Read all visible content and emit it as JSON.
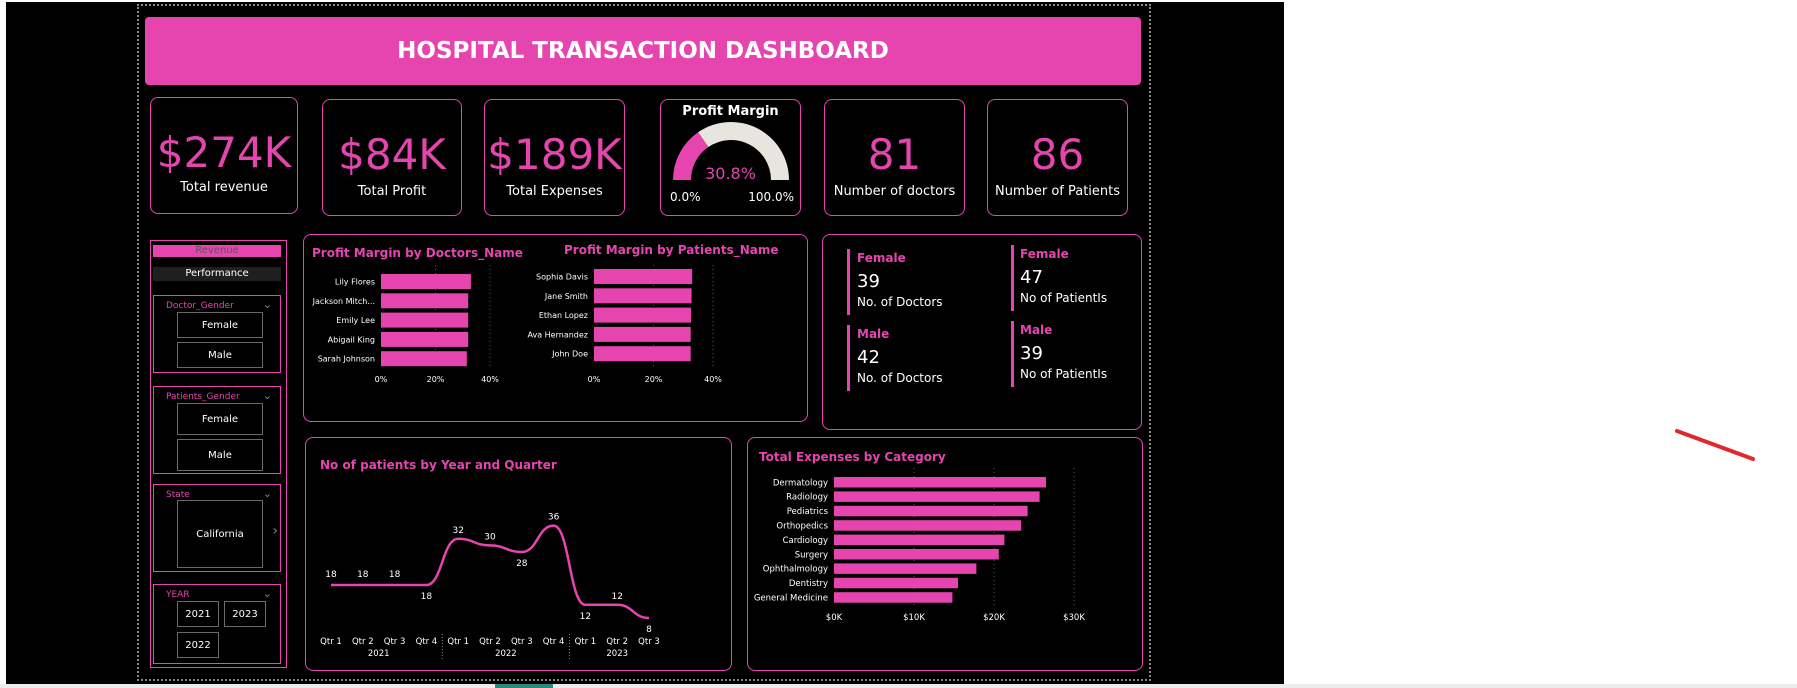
{
  "title": "HOSPITAL TRANSACTION DASHBOARD",
  "kpis": [
    {
      "value": "$274K",
      "label": "Total revenue"
    },
    {
      "value": "$84K",
      "label": "Total Profit"
    },
    {
      "value": "$189K",
      "label": "Total Expenses"
    },
    {
      "value": "81",
      "label": "Number of doctors"
    },
    {
      "value": "86",
      "label": "Number of Patients"
    }
  ],
  "gauge": {
    "title": "Profit Margin",
    "value_label": "30.8%",
    "value": 0.308,
    "min_label": "0.0%",
    "max_label": "100.0%",
    "fill_color": "#e645b0",
    "track_color": "#e8e4de"
  },
  "nav": {
    "revenue": "Revenue",
    "performance": "Performance"
  },
  "filters": {
    "doctor_gender": {
      "title": "Doctor_Gender",
      "options": [
        "Female",
        "Male"
      ]
    },
    "patient_gender": {
      "title": "Patients_Gender",
      "options": [
        "Female",
        "Male"
      ]
    },
    "state": {
      "title": "State",
      "options": [
        "California"
      ]
    },
    "year": {
      "title": "YEAR",
      "options": [
        "2021",
        "2023",
        "2022"
      ]
    }
  },
  "gender_card": {
    "doctors_female": {
      "head": "Female",
      "value": "39",
      "label": "No. of Doctors"
    },
    "doctors_male": {
      "head": "Male",
      "value": "42",
      "label": "No. of Doctors"
    },
    "patients_female": {
      "head": "Female",
      "value": "47",
      "label": "No of PatientIs"
    },
    "patients_male": {
      "head": "Male",
      "value": "39",
      "label": "No of PatientIs"
    }
  },
  "chart_data": [
    {
      "type": "bar",
      "title": "Profit Margin by Doctors_Name",
      "orientation": "horizontal",
      "categories": [
        "Lily Flores",
        "Jackson Mitch...",
        "Emily Lee",
        "Abigail King",
        "Sarah Johnson"
      ],
      "values": [
        33,
        32,
        32,
        32,
        31.5
      ],
      "xticks": [
        "0%",
        "20%",
        "40%"
      ],
      "xlim": [
        0,
        40
      ]
    },
    {
      "type": "bar",
      "title": "Profit Margin by Patients_Name",
      "orientation": "horizontal",
      "categories": [
        "Sophia Davis",
        "Jane Smith",
        "Ethan Lopez",
        "Ava Hernandez",
        "John Doe"
      ],
      "values": [
        33,
        32.8,
        32.6,
        32.5,
        32.5
      ],
      "xticks": [
        "0%",
        "20%",
        "40%"
      ],
      "xlim": [
        0,
        40
      ]
    },
    {
      "type": "line",
      "title": "No of patients by Year and Quarter",
      "categories": [
        "Qtr 1",
        "Qtr 2",
        "Qtr 3",
        "Qtr 4",
        "Qtr 1",
        "Qtr 2",
        "Qtr 3",
        "Qtr 4",
        "Qtr 1",
        "Qtr 2",
        "Qtr 3"
      ],
      "years": [
        {
          "label": "2021",
          "count": 4
        },
        {
          "label": "2022",
          "count": 4
        },
        {
          "label": "2023",
          "count": 3
        }
      ],
      "values": [
        18,
        18,
        18,
        18,
        32,
        30,
        28,
        36,
        12,
        12,
        8
      ]
    },
    {
      "type": "bar",
      "title": "Total Expenses by Category",
      "orientation": "horizontal",
      "categories": [
        "Dermatology",
        "Radiology",
        "Pediatrics",
        "Orthopedics",
        "Cardiology",
        "Surgery",
        "Ophthalmology",
        "Dentistry",
        "General Medicine"
      ],
      "values": [
        26.5,
        25.7,
        24.2,
        23.4,
        21.3,
        20.6,
        17.8,
        15.5,
        14.8
      ],
      "xticks": [
        "$0K",
        "$10K",
        "$20K",
        "$30K"
      ],
      "xlim": [
        0,
        30
      ]
    }
  ]
}
